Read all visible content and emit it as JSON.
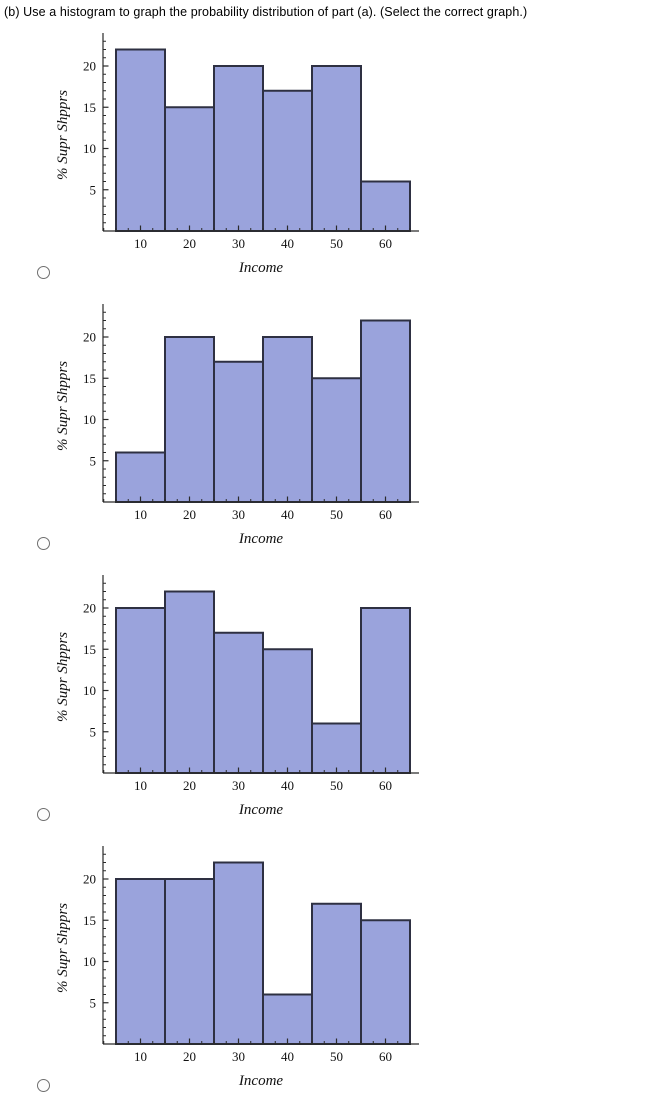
{
  "title": "(b) Use a histogram to graph the probability distribution of part (a). (Select the correct graph.)",
  "colors": {
    "bar_fill": "#9aa3dc",
    "bar_stroke": "#2e3042",
    "axis": "#2a2a2a",
    "tick": "#2a2a2a",
    "text": "#111111",
    "radio_border": "#6f6f6f"
  },
  "chart_data": [
    {
      "type": "bar",
      "variant": "histogram",
      "title": "",
      "xlabel": "Income",
      "ylabel": "% Supr Shpprs",
      "categories": [
        10,
        20,
        30,
        40,
        50,
        60
      ],
      "values": [
        22,
        15,
        20,
        17,
        20,
        6
      ],
      "bin_width": 10,
      "xlim": [
        2.5,
        67
      ],
      "ylim": [
        0,
        24
      ],
      "yticks": [
        5,
        10,
        15,
        20
      ],
      "grid": false,
      "legend": false
    },
    {
      "type": "bar",
      "variant": "histogram",
      "title": "",
      "xlabel": "Income",
      "ylabel": "% Supr Shpprs",
      "categories": [
        10,
        20,
        30,
        40,
        50,
        60
      ],
      "values": [
        6,
        20,
        17,
        20,
        15,
        22
      ],
      "bin_width": 10,
      "xlim": [
        2.5,
        67
      ],
      "ylim": [
        0,
        24
      ],
      "yticks": [
        5,
        10,
        15,
        20
      ],
      "grid": false,
      "legend": false
    },
    {
      "type": "bar",
      "variant": "histogram",
      "title": "",
      "xlabel": "Income",
      "ylabel": "% Supr Shpprs",
      "categories": [
        10,
        20,
        30,
        40,
        50,
        60
      ],
      "values": [
        20,
        22,
        17,
        15,
        6,
        20
      ],
      "bin_width": 10,
      "xlim": [
        2.5,
        67
      ],
      "ylim": [
        0,
        24
      ],
      "yticks": [
        5,
        10,
        15,
        20
      ],
      "grid": false,
      "legend": false
    },
    {
      "type": "bar",
      "variant": "histogram",
      "title": "",
      "xlabel": "Income",
      "ylabel": "% Supr Shpprs",
      "categories": [
        10,
        20,
        30,
        40,
        50,
        60
      ],
      "values": [
        20,
        20,
        22,
        6,
        17,
        15
      ],
      "bin_width": 10,
      "xlim": [
        2.5,
        67
      ],
      "ylim": [
        0,
        24
      ],
      "yticks": [
        5,
        10,
        15,
        20
      ],
      "grid": false,
      "legend": false
    }
  ],
  "options": [
    {
      "id": "option-1",
      "selected": false
    },
    {
      "id": "option-2",
      "selected": false
    },
    {
      "id": "option-3",
      "selected": false
    },
    {
      "id": "option-4",
      "selected": false
    }
  ]
}
